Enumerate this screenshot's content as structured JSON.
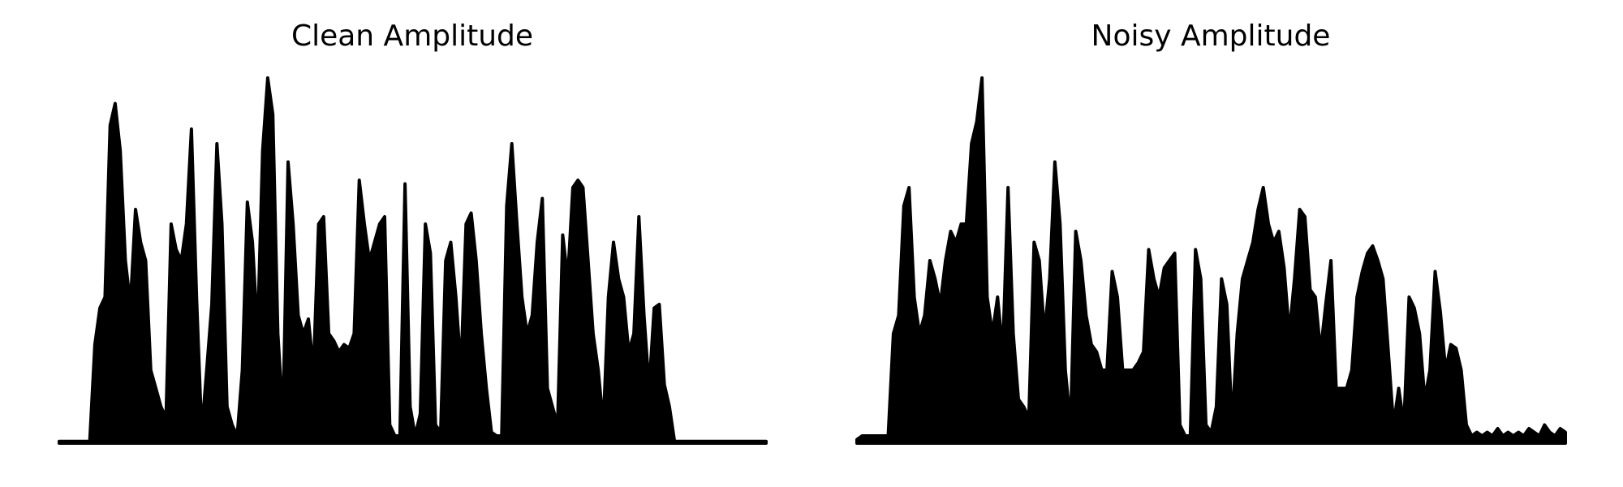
{
  "chart_data": [
    {
      "type": "area",
      "title": "Clean Amplitude",
      "color": "#000000",
      "ylim": [
        0,
        1
      ],
      "values": [
        0.005,
        0.005,
        0.005,
        0.005,
        0.005,
        0.005,
        0.005,
        0.27,
        0.37,
        0.4,
        0.87,
        0.93,
        0.8,
        0.5,
        0.38,
        0.64,
        0.55,
        0.5,
        0.2,
        0.15,
        0.1,
        0.07,
        0.6,
        0.53,
        0.5,
        0.6,
        0.86,
        0.4,
        0.03,
        0.2,
        0.38,
        0.82,
        0.6,
        0.1,
        0.05,
        0.02,
        0.2,
        0.66,
        0.55,
        0.3,
        0.8,
        1.0,
        0.9,
        0.3,
        0.07,
        0.77,
        0.6,
        0.35,
        0.3,
        0.34,
        0.2,
        0.6,
        0.62,
        0.3,
        0.28,
        0.25,
        0.27,
        0.26,
        0.3,
        0.72,
        0.6,
        0.5,
        0.55,
        0.6,
        0.62,
        0.05,
        0.02,
        0.02,
        0.71,
        0.1,
        0.02,
        0.08,
        0.6,
        0.52,
        0.05,
        0.03,
        0.5,
        0.55,
        0.4,
        0.2,
        0.6,
        0.63,
        0.5,
        0.3,
        0.15,
        0.03,
        0.02,
        0.02,
        0.65,
        0.82,
        0.6,
        0.4,
        0.3,
        0.35,
        0.55,
        0.67,
        0.15,
        0.1,
        0.05,
        0.57,
        0.45,
        0.7,
        0.72,
        0.7,
        0.5,
        0.3,
        0.2,
        0.05,
        0.4,
        0.55,
        0.45,
        0.4,
        0.25,
        0.3,
        0.62,
        0.35,
        0.15,
        0.37,
        0.38,
        0.16,
        0.1,
        0.005,
        0.005,
        0.005,
        0.005,
        0.005,
        0.005,
        0.005,
        0.005,
        0.005,
        0.005,
        0.005,
        0.005,
        0.005,
        0.005,
        0.005,
        0.005,
        0.005,
        0.005,
        0.005
      ]
    },
    {
      "type": "area",
      "title": "Noisy Amplitude",
      "color": "#000000",
      "ylim": [
        0,
        1
      ],
      "values": [
        0.01,
        0.02,
        0.02,
        0.02,
        0.02,
        0.02,
        0.02,
        0.3,
        0.35,
        0.65,
        0.7,
        0.4,
        0.3,
        0.35,
        0.5,
        0.45,
        0.38,
        0.5,
        0.58,
        0.55,
        0.6,
        0.6,
        0.82,
        0.88,
        1.0,
        0.4,
        0.3,
        0.4,
        0.25,
        0.7,
        0.3,
        0.12,
        0.1,
        0.07,
        0.55,
        0.5,
        0.3,
        0.45,
        0.77,
        0.6,
        0.2,
        0.05,
        0.58,
        0.5,
        0.35,
        0.27,
        0.25,
        0.2,
        0.2,
        0.47,
        0.4,
        0.2,
        0.2,
        0.2,
        0.22,
        0.25,
        0.53,
        0.45,
        0.4,
        0.48,
        0.5,
        0.52,
        0.05,
        0.02,
        0.02,
        0.53,
        0.45,
        0.05,
        0.03,
        0.1,
        0.45,
        0.38,
        0.05,
        0.3,
        0.45,
        0.5,
        0.55,
        0.64,
        0.7,
        0.6,
        0.55,
        0.58,
        0.48,
        0.3,
        0.45,
        0.64,
        0.62,
        0.42,
        0.4,
        0.25,
        0.38,
        0.5,
        0.15,
        0.15,
        0.15,
        0.2,
        0.4,
        0.47,
        0.52,
        0.54,
        0.5,
        0.45,
        0.25,
        0.05,
        0.15,
        0.05,
        0.4,
        0.37,
        0.3,
        0.12,
        0.2,
        0.47,
        0.36,
        0.2,
        0.27,
        0.26,
        0.2,
        0.05,
        0.02,
        0.03,
        0.02,
        0.03,
        0.02,
        0.04,
        0.02,
        0.03,
        0.02,
        0.03,
        0.02,
        0.04,
        0.03,
        0.02,
        0.05,
        0.03,
        0.02,
        0.04,
        0.03
      ]
    }
  ]
}
